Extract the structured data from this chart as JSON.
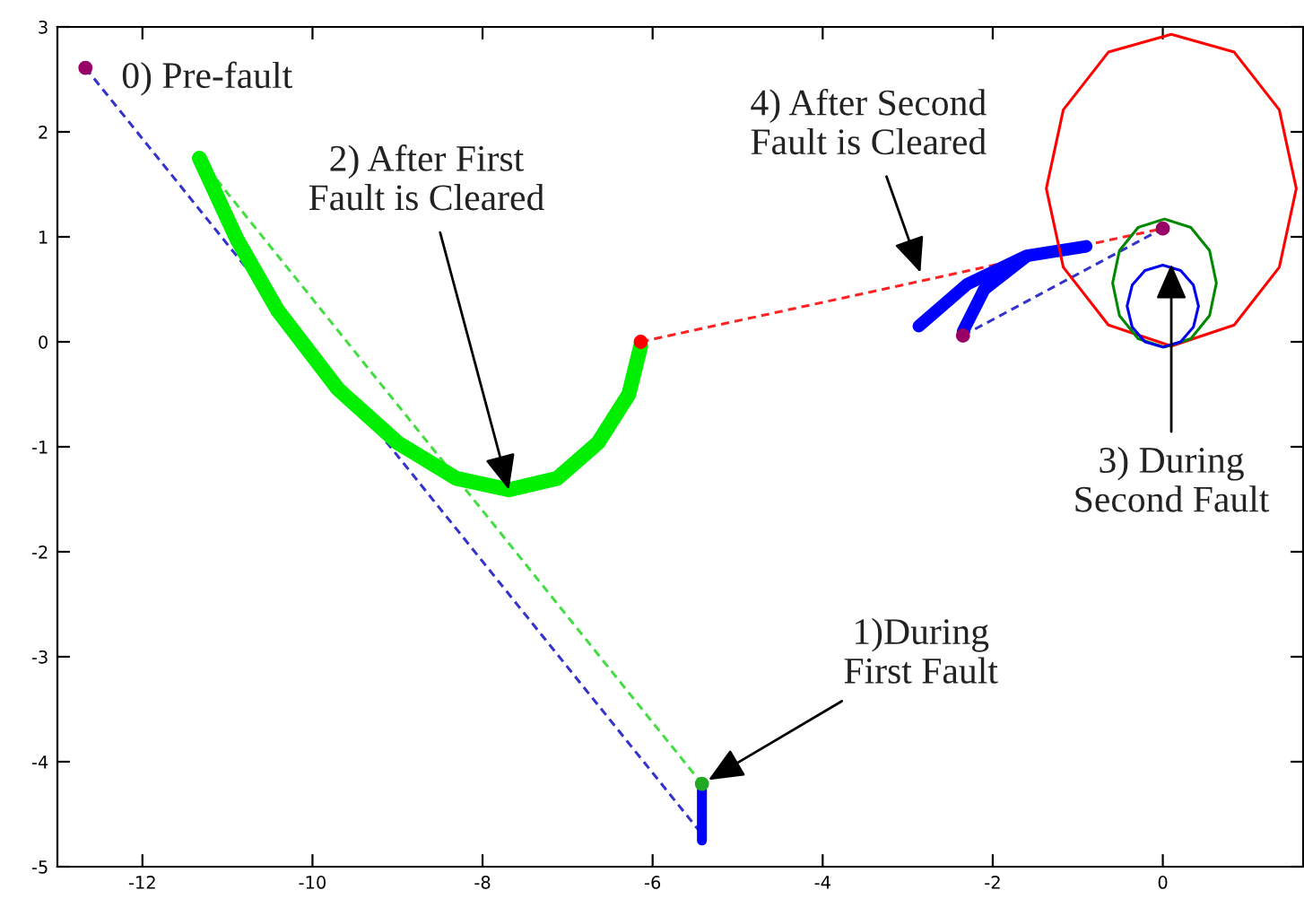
{
  "chart_data": {
    "type": "line",
    "xlim": [
      -13,
      1.65
    ],
    "ylim": [
      -5,
      3
    ],
    "xticks": [
      -12,
      -10,
      -8,
      -6,
      -4,
      -2,
      0
    ],
    "yticks": [
      -5,
      -4,
      -3,
      -2,
      -1,
      0,
      1,
      2,
      3
    ],
    "grid": false,
    "legend": false,
    "series": [
      {
        "line_style": "dashed",
        "color": "#3333cc",
        "x": [
          -12.67,
          -5.42
        ],
        "values": [
          2.61,
          -4.69
        ]
      },
      {
        "line_style": "dashed",
        "color": "#44dd44",
        "x": [
          -11.33,
          -5.42
        ],
        "values": [
          1.75,
          -4.21
        ]
      },
      {
        "line_style": "dashed",
        "color": "#ff2222",
        "x": [
          -6.14,
          0
        ],
        "values": [
          0,
          1.08
        ]
      },
      {
        "line_style": "dashed",
        "color": "#3333cc",
        "x": [
          -2.35,
          0
        ],
        "values": [
          0.06,
          1.08
        ]
      },
      {
        "line_style": "solid",
        "color": "#00ee00",
        "x": [
          -11.33,
          -10.89,
          -10.41,
          -9.7,
          -9.0,
          -8.31,
          -7.69,
          -7.12,
          -6.64,
          -6.28,
          -6.14
        ],
        "values": [
          1.75,
          0.98,
          0.3,
          -0.45,
          -0.96,
          -1.3,
          -1.41,
          -1.3,
          -0.96,
          -0.5,
          -0.04
        ]
      },
      {
        "line_style": "solid",
        "color": "#0000ff",
        "x": [
          -5.42,
          -5.42
        ],
        "values": [
          -4.27,
          -4.75
        ]
      },
      {
        "line_style": "solid",
        "color": "#0000ff",
        "x": [
          -2.87,
          -2.3,
          -1.6,
          -0.9
        ],
        "values": [
          0.15,
          0.55,
          0.82,
          0.91
        ]
      },
      {
        "line_style": "solid",
        "color": "#0000ff",
        "x": [
          -2.35,
          -2.1,
          -1.61
        ],
        "values": [
          0.1,
          0.5,
          0.81
        ]
      },
      {
        "line_style": "solid",
        "color": "#ff0000",
        "x": [
          -1.37,
          -1.17,
          -0.64,
          0.1,
          0.84,
          1.37,
          1.57,
          null,
          1.57,
          1.37,
          0.84,
          0.1,
          -0.64,
          -1.17,
          -1.37
        ],
        "values": [
          1.46,
          2.21,
          2.76,
          2.93,
          2.76,
          2.21,
          1.46,
          null,
          1.46,
          0.71,
          0.16,
          -0.04,
          0.16,
          0.71,
          1.46
        ]
      },
      {
        "line_style": "solid",
        "color": "#008800",
        "x": [
          -0.59,
          -0.51,
          -0.29,
          0.02,
          0.33,
          0.55,
          0.63,
          null,
          0.63,
          0.55,
          0.33,
          0.02,
          -0.29,
          -0.51,
          -0.59
        ],
        "values": [
          0.56,
          0.87,
          1.09,
          1.17,
          1.09,
          0.87,
          0.56,
          null,
          0.56,
          0.25,
          0.03,
          -0.05,
          0.03,
          0.25,
          0.56
        ]
      },
      {
        "line_style": "solid",
        "color": "#0000ee",
        "x": [
          -0.42,
          -0.36,
          -0.21,
          0,
          0.21,
          0.36,
          0.42,
          null,
          0.42,
          0.36,
          0.21,
          0,
          -0.21,
          -0.36,
          -0.42
        ],
        "values": [
          0.34,
          0.54,
          0.68,
          0.73,
          0.68,
          0.54,
          0.34,
          null,
          0.34,
          0.14,
          0.0,
          -0.05,
          0.0,
          0.14,
          0.34
        ]
      },
      {
        "type": "scatter",
        "marker": "circle",
        "color": "#990066",
        "x": [
          -12.67,
          -2.35,
          0
        ],
        "values": [
          2.61,
          0.06,
          1.08
        ]
      },
      {
        "type": "scatter",
        "marker": "circle",
        "color": "#ff0000",
        "x": [
          -6.14
        ],
        "values": [
          0
        ]
      },
      {
        "type": "scatter",
        "marker": "circle",
        "color": "#22aa22",
        "x": [
          -5.42
        ],
        "values": [
          -4.21
        ]
      }
    ],
    "annotations": [
      {
        "text": "0) Pre-fault",
        "x": -12.67,
        "y": 2.61
      },
      {
        "text": "2) After First\nFault is Cleared",
        "x": -7.69,
        "y": -1.41
      },
      {
        "text": "4) After Second\nFault is Cleared",
        "x": -2.85,
        "y": 0.66
      },
      {
        "text": "3) During\nSecond Fault",
        "x": 0.1,
        "y": 0.74
      },
      {
        "text": "1)During\nFirst Fault",
        "x": -5.42,
        "y": -4.21
      }
    ]
  }
}
